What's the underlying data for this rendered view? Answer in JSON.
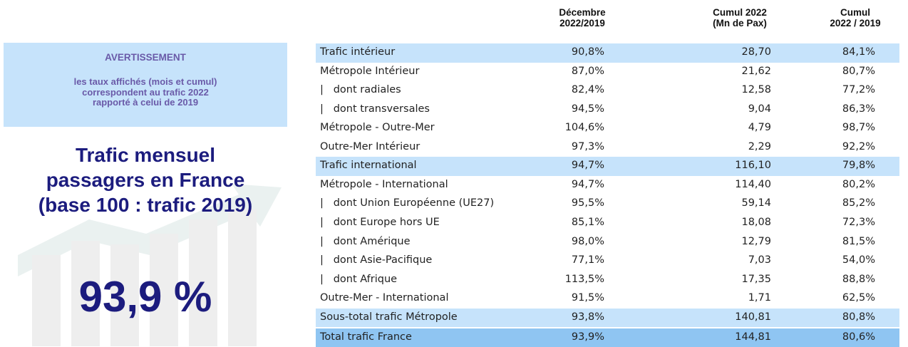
{
  "warning": {
    "title": "AVERTISSEMENT",
    "lines": [
      "les taux affichés (mois et cumul)",
      "correspondent au trafic 2022",
      "rapporté à celui de 2019"
    ]
  },
  "headline": {
    "lines": [
      "Trafic mensuel",
      "passagers en France",
      "(base 100 : trafic 2019)"
    ],
    "value": "93,9 %"
  },
  "table": {
    "headers": [
      [
        "Décembre",
        "2022/2019"
      ],
      [
        "Cumul 2022",
        "(Mn de Pax)"
      ],
      [
        "Cumul",
        "2022 / 2019"
      ]
    ],
    "rows": [
      [
        "Trafic intérieur",
        "90,8%",
        "28,70",
        "84,1%"
      ],
      [
        "Métropole Intérieur",
        "87,0%",
        "21,62",
        "80,7%"
      ],
      [
        "|   dont radiales",
        "82,4%",
        "12,58",
        "77,2%"
      ],
      [
        "|   dont transversales",
        "94,5%",
        "9,04",
        "86,3%"
      ],
      [
        "Métropole - Outre-Mer",
        "104,6%",
        "4,79",
        "98,7%"
      ],
      [
        "Outre-Mer Intérieur",
        "97,3%",
        "2,29",
        "92,2%"
      ],
      [
        "Trafic international",
        "94,7%",
        "116,10",
        "79,8%"
      ],
      [
        "Métropole - International",
        "94,7%",
        "114,40",
        "80,2%"
      ],
      [
        "|   dont Union Européenne (UE27)",
        "95,5%",
        "59,14",
        "85,2%"
      ],
      [
        "|   dont Europe hors UE",
        "85,1%",
        "18,08",
        "72,3%"
      ],
      [
        "|   dont Amérique",
        "98,0%",
        "12,79",
        "81,5%"
      ],
      [
        "|   dont Asie-Pacifique",
        "77,1%",
        "7,03",
        "54,0%"
      ],
      [
        "|   dont Afrique",
        "113,5%",
        "17,35",
        "88,8%"
      ],
      [
        "Outre-Mer - International",
        "91,5%",
        "1,71",
        "62,5%"
      ],
      [
        "Sous-total trafic Métropole",
        "93,8%",
        "140,81",
        "80,8%"
      ],
      [
        "Total trafic France",
        "93,9%",
        "144,81",
        "80,6%"
      ]
    ]
  }
}
